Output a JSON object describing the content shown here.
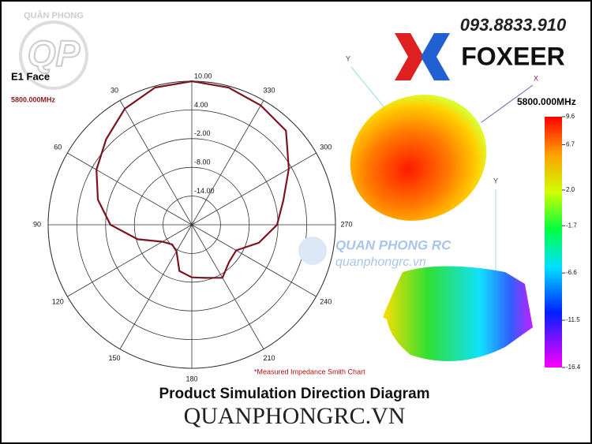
{
  "header": {
    "brand": "FOXEER",
    "phone": "093.8833.910",
    "watermark_logo": "QP",
    "watermark_arc": "QUÂN PHONG",
    "watermark_name": "QUAN PHONG RC",
    "watermark_url": "quanphongrc.vn"
  },
  "chart_data": {
    "type": "polar",
    "title": "E1 Face",
    "subtitle": "5800.000MHz",
    "note": "*Measured Impedance Smith Chart",
    "color": "#7a1420",
    "theta": [
      0,
      15,
      30,
      45,
      60,
      75,
      90,
      105,
      120,
      135,
      150,
      165,
      180,
      195,
      210,
      225,
      240,
      255,
      270,
      285,
      300,
      315,
      330,
      345
    ],
    "values": [
      10,
      9.7,
      8,
      5.3,
      3,
      0.3,
      -3,
      -8.3,
      -12.9,
      -14.2,
      -13.6,
      -10,
      -9,
      -8.5,
      -7.2,
      -9,
      -9.3,
      -5.5,
      -2.2,
      -0.2,
      3.4,
      7.8,
      8.8,
      9.7
    ],
    "rlim": [
      -20,
      10
    ],
    "rticks": [
      {
        "value": 10,
        "label": "10.00"
      },
      {
        "value": 4,
        "label": "4.00"
      },
      {
        "value": -2,
        "label": "-2.00"
      },
      {
        "value": -8,
        "label": "-8.00"
      },
      {
        "value": -14,
        "label": "-14.00"
      }
    ],
    "thetaticks": [
      30,
      60,
      90,
      120,
      150,
      180,
      210,
      240,
      270,
      300,
      330
    ]
  },
  "model3d": {
    "frequency": "5800.000MHz",
    "axis_x": "X",
    "axis_y": "Y",
    "axis_y2": "Y",
    "colorbar": {
      "ticks": [
        {
          "value": 9.6,
          "label": "9.6"
        },
        {
          "value": 6.7,
          "label": "6.7"
        },
        {
          "value": 2.0,
          "label": "2.0"
        },
        {
          "value": -1.7,
          "label": "-1.7"
        },
        {
          "value": -6.6,
          "label": "-6.6"
        },
        {
          "value": -11.5,
          "label": "-11.5"
        },
        {
          "value": -16.4,
          "label": "-16.4"
        }
      ],
      "lim": [
        -16.4,
        9.6
      ]
    }
  },
  "footer": {
    "caption": "Product Simulation Direction Diagram",
    "site": "QUANPHONGRC.VN"
  }
}
